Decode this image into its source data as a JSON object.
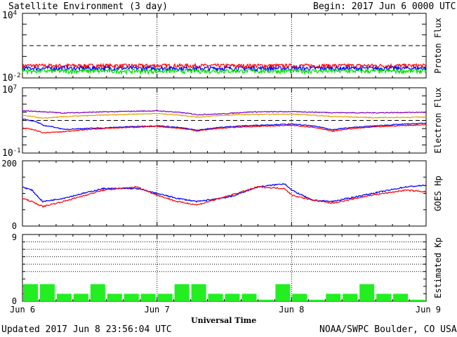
{
  "header": {
    "title": "Satellite Environment (3 day)",
    "begin": "Begin:  2017 Jun 6 0000 UTC"
  },
  "footer": {
    "updated": "Updated 2017 Jun  8 23:56:04 UTC",
    "credit": "NOAA/SWPC Boulder, CO USA"
  },
  "chart_data": [
    {
      "type": "line",
      "panel": "proton",
      "ylabel": "Proton Flux",
      "yscale": "log",
      "ylim": [
        0.01,
        10000
      ],
      "ytick_labels": [
        {
          "base": "10",
          "exp": "4",
          "value": 10000
        },
        {
          "base": "10",
          "exp": "-2",
          "value": 0.01
        }
      ],
      "reference_lines": [
        {
          "y": 10,
          "style": "dashed"
        }
      ],
      "series": [
        {
          "color": "#ff0000",
          "level": 0.14,
          "noise": 0.06
        },
        {
          "color": "#0000ff",
          "level": 0.08,
          "noise": 0.035
        },
        {
          "color": "#00e000",
          "level": 0.045,
          "noise": 0.02
        }
      ]
    },
    {
      "type": "line",
      "panel": "electron",
      "ylabel": "Electron Flux",
      "yscale": "log",
      "ylim": [
        0.1,
        10000000
      ],
      "ytick_labels": [
        {
          "base": "10",
          "exp": "7",
          "value": 10000000
        },
        {
          "base": "10",
          "exp": "-1",
          "value": 0.1
        }
      ],
      "reference_lines": [
        {
          "y": 1000,
          "style": "dashed"
        }
      ],
      "series": [
        {
          "color": "#8000c0",
          "x": [
            0,
            0.3,
            0.6,
            1,
            1.3,
            1.5,
            1.7,
            2,
            2.3,
            2.6,
            3
          ],
          "y": [
            15000,
            8000,
            11000,
            15000,
            5000,
            6500,
            11000,
            12000,
            9000,
            8500,
            10000
          ]
        },
        {
          "color": "#e0a000",
          "x": [
            0,
            0.15,
            0.3,
            0.6,
            1,
            1.3,
            1.6,
            2,
            2.3,
            2.6,
            3
          ],
          "y": [
            4000,
            1800,
            2800,
            4500,
            7000,
            2500,
            5000,
            6000,
            3000,
            2200,
            2500
          ]
        },
        {
          "color": "#0000ff",
          "x": [
            0,
            0.15,
            0.3,
            0.6,
            1,
            1.3,
            1.6,
            2,
            2.3,
            2.6,
            3
          ],
          "y": [
            1500,
            250,
            80,
            120,
            220,
            60,
            200,
            350,
            70,
            200,
            450
          ]
        },
        {
          "color": "#ff0000",
          "x": [
            0,
            0.1,
            0.15,
            0.3,
            0.6,
            1,
            1.3,
            1.6,
            2,
            2.3,
            2.6,
            3
          ],
          "y": [
            120,
            60,
            30,
            40,
            100,
            180,
            50,
            150,
            250,
            45,
            150,
            300
          ]
        }
      ]
    },
    {
      "type": "line",
      "panel": "hp",
      "ylabel": "GOES Hp",
      "ylim": [
        0,
        200
      ],
      "yticks": [
        0,
        200
      ],
      "series": [
        {
          "color": "#0000ff",
          "x": [
            0,
            0.07,
            0.15,
            0.3,
            0.6,
            0.85,
            1,
            1.15,
            1.3,
            1.55,
            1.75,
            1.95,
            2,
            2.15,
            2.3,
            2.6,
            2.85,
            3
          ],
          "y": [
            120,
            110,
            75,
            85,
            115,
            115,
            100,
            85,
            75,
            90,
            120,
            130,
            110,
            80,
            75,
            100,
            120,
            125
          ]
        },
        {
          "color": "#ff0000",
          "x": [
            0,
            0.07,
            0.15,
            0.3,
            0.6,
            0.85,
            1,
            1.15,
            1.3,
            1.55,
            1.75,
            1.95,
            2,
            2.15,
            2.3,
            2.6,
            2.85,
            3
          ],
          "y": [
            85,
            75,
            60,
            75,
            110,
            120,
            95,
            75,
            65,
            95,
            120,
            115,
            95,
            80,
            70,
            95,
            110,
            105
          ]
        }
      ]
    },
    {
      "type": "bar",
      "panel": "kp",
      "ylabel": "Estimated Kp",
      "ylim": [
        0,
        9
      ],
      "yticks": [
        0,
        9
      ],
      "grid_y": [
        4,
        5,
        6,
        7,
        8,
        9
      ],
      "bar_color": "#22ee22",
      "values": [
        2.3,
        2.3,
        1,
        1,
        2.3,
        1,
        1,
        1,
        1,
        2.3,
        2.3,
        1,
        1,
        1,
        0.2,
        2.3,
        1,
        0.2,
        1,
        1,
        2.3,
        1,
        1,
        0.2
      ]
    }
  ],
  "xaxis": {
    "label": "Universal Time",
    "ticks": [
      {
        "label": "Jun 6",
        "pos": 0
      },
      {
        "label": "Jun 7",
        "pos": 1
      },
      {
        "label": "Jun 8",
        "pos": 2
      },
      {
        "label": "Jun 9",
        "pos": 3
      }
    ]
  }
}
